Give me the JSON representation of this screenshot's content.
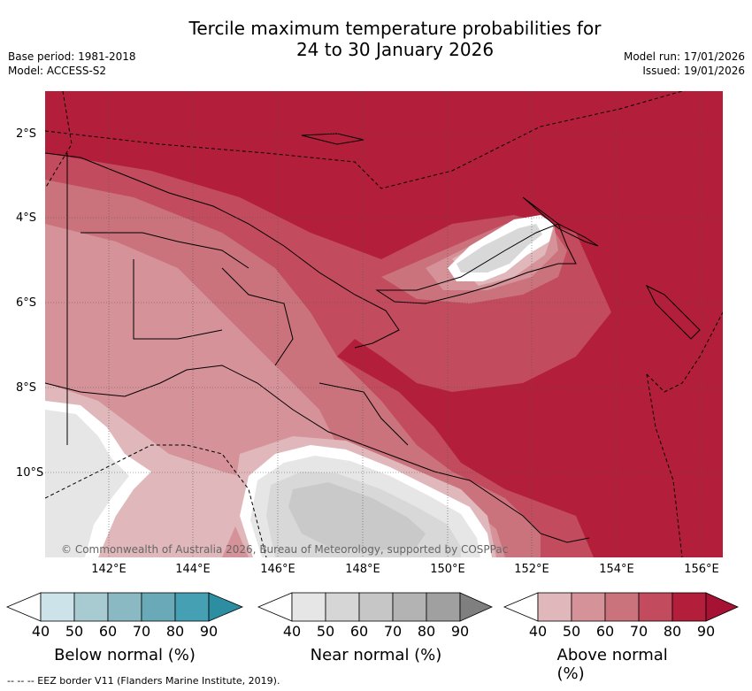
{
  "header": {
    "title_line1": "Tercile maximum temperature probabilities for",
    "title_line2": "24 to 30 January 2026",
    "base_period": "Base period: 1981-2018",
    "model": "Model: ACCESS-S2",
    "model_run": "Model run: 17/01/2026",
    "issued": "Issued: 19/01/2026"
  },
  "map": {
    "copyright": "© Commonwealth of Australia 2026, Bureau of Meteorology, supported by COSPPac",
    "lat_labels": [
      "2°S",
      "4°S",
      "6°S",
      "8°S",
      "10°S"
    ],
    "lon_labels": [
      "142°E",
      "144°E",
      "146°E",
      "148°E",
      "150°E",
      "152°E",
      "154°E",
      "156°E"
    ],
    "region_colors": {
      "above_80_90": "#b31e3a",
      "above_70_80": "#c24b5e",
      "above_60_70": "#cb737d",
      "above_50_60": "#d69299",
      "above_40_50": "#e0b7bb",
      "near_40_50": "#e6e6e6",
      "near_50_60": "#d8d8d8",
      "near_60_70": "#c9c9c9"
    }
  },
  "legend": {
    "ticks": [
      "40",
      "50",
      "60",
      "70",
      "80",
      "90"
    ],
    "bars": [
      {
        "label": "Below normal (%)",
        "colors": [
          "#ffffff",
          "#cce3e9",
          "#a8cad1",
          "#8bb9c3",
          "#6aa9b7",
          "#45a0b3",
          "#2d8da1"
        ]
      },
      {
        "label": "Near normal (%)",
        "colors": [
          "#ffffff",
          "#e6e6e6",
          "#d6d6d6",
          "#c6c6c6",
          "#b3b3b3",
          "#a0a0a0",
          "#7f7f7f"
        ]
      },
      {
        "label": "Above normal (%)",
        "colors": [
          "#ffffff",
          "#e0b7bb",
          "#d69299",
          "#cb737d",
          "#c24b5e",
          "#b31e3a",
          "#a61233"
        ]
      }
    ]
  },
  "footer": {
    "eez": "-- -- -- EEZ border V11 (Flanders Marine Institute, 2019)."
  }
}
